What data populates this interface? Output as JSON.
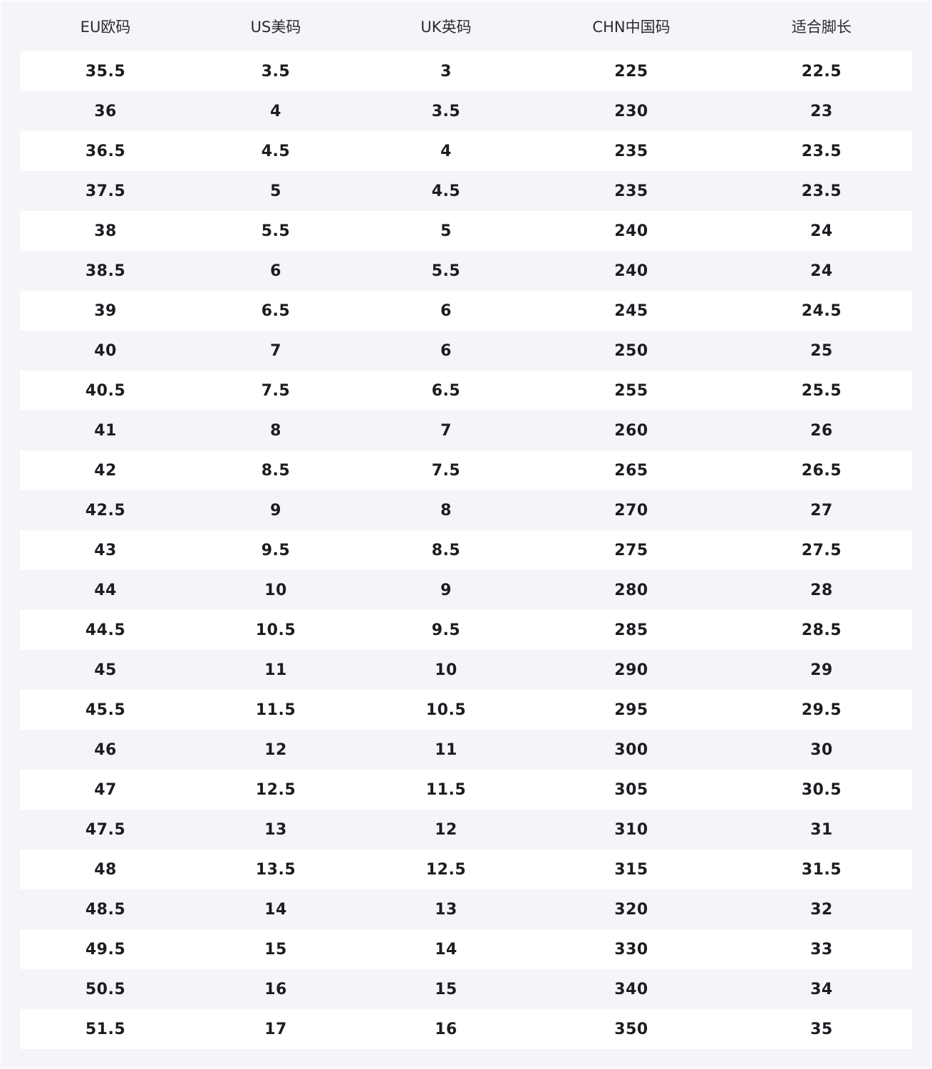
{
  "headers": [
    "EU欧码",
    "US美码",
    "UK英码",
    "CHN中国码",
    "适合脚长"
  ],
  "rows": [
    [
      "35.5",
      "3.5",
      "3",
      "225",
      "22.5"
    ],
    [
      "36",
      "4",
      "3.5",
      "230",
      "23"
    ],
    [
      "36.5",
      "4.5",
      "4",
      "235",
      "23.5"
    ],
    [
      "37.5",
      "5",
      "4.5",
      "235",
      "23.5"
    ],
    [
      "38",
      "5.5",
      "5",
      "240",
      "24"
    ],
    [
      "38.5",
      "6",
      "5.5",
      "240",
      "24"
    ],
    [
      "39",
      "6.5",
      "6",
      "245",
      "24.5"
    ],
    [
      "40",
      "7",
      "6",
      "250",
      "25"
    ],
    [
      "40.5",
      "7.5",
      "6.5",
      "255",
      "25.5"
    ],
    [
      "41",
      "8",
      "7",
      "260",
      "26"
    ],
    [
      "42",
      "8.5",
      "7.5",
      "265",
      "26.5"
    ],
    [
      "42.5",
      "9",
      "8",
      "270",
      "27"
    ],
    [
      "43",
      "9.5",
      "8.5",
      "275",
      "27.5"
    ],
    [
      "44",
      "10",
      "9",
      "280",
      "28"
    ],
    [
      "44.5",
      "10.5",
      "9.5",
      "285",
      "28.5"
    ],
    [
      "45",
      "11",
      "10",
      "290",
      "29"
    ],
    [
      "45.5",
      "11.5",
      "10.5",
      "295",
      "29.5"
    ],
    [
      "46",
      "12",
      "11",
      "300",
      "30"
    ],
    [
      "47",
      "12.5",
      "11.5",
      "305",
      "30.5"
    ],
    [
      "47.5",
      "13",
      "12",
      "310",
      "31"
    ],
    [
      "48",
      "13.5",
      "12.5",
      "315",
      "31.5"
    ],
    [
      "48.5",
      "14",
      "13",
      "320",
      "32"
    ],
    [
      "49.5",
      "15",
      "14",
      "330",
      "33"
    ],
    [
      "50.5",
      "16",
      "15",
      "340",
      "34"
    ],
    [
      "51.5",
      "17",
      "16",
      "350",
      "35"
    ]
  ]
}
